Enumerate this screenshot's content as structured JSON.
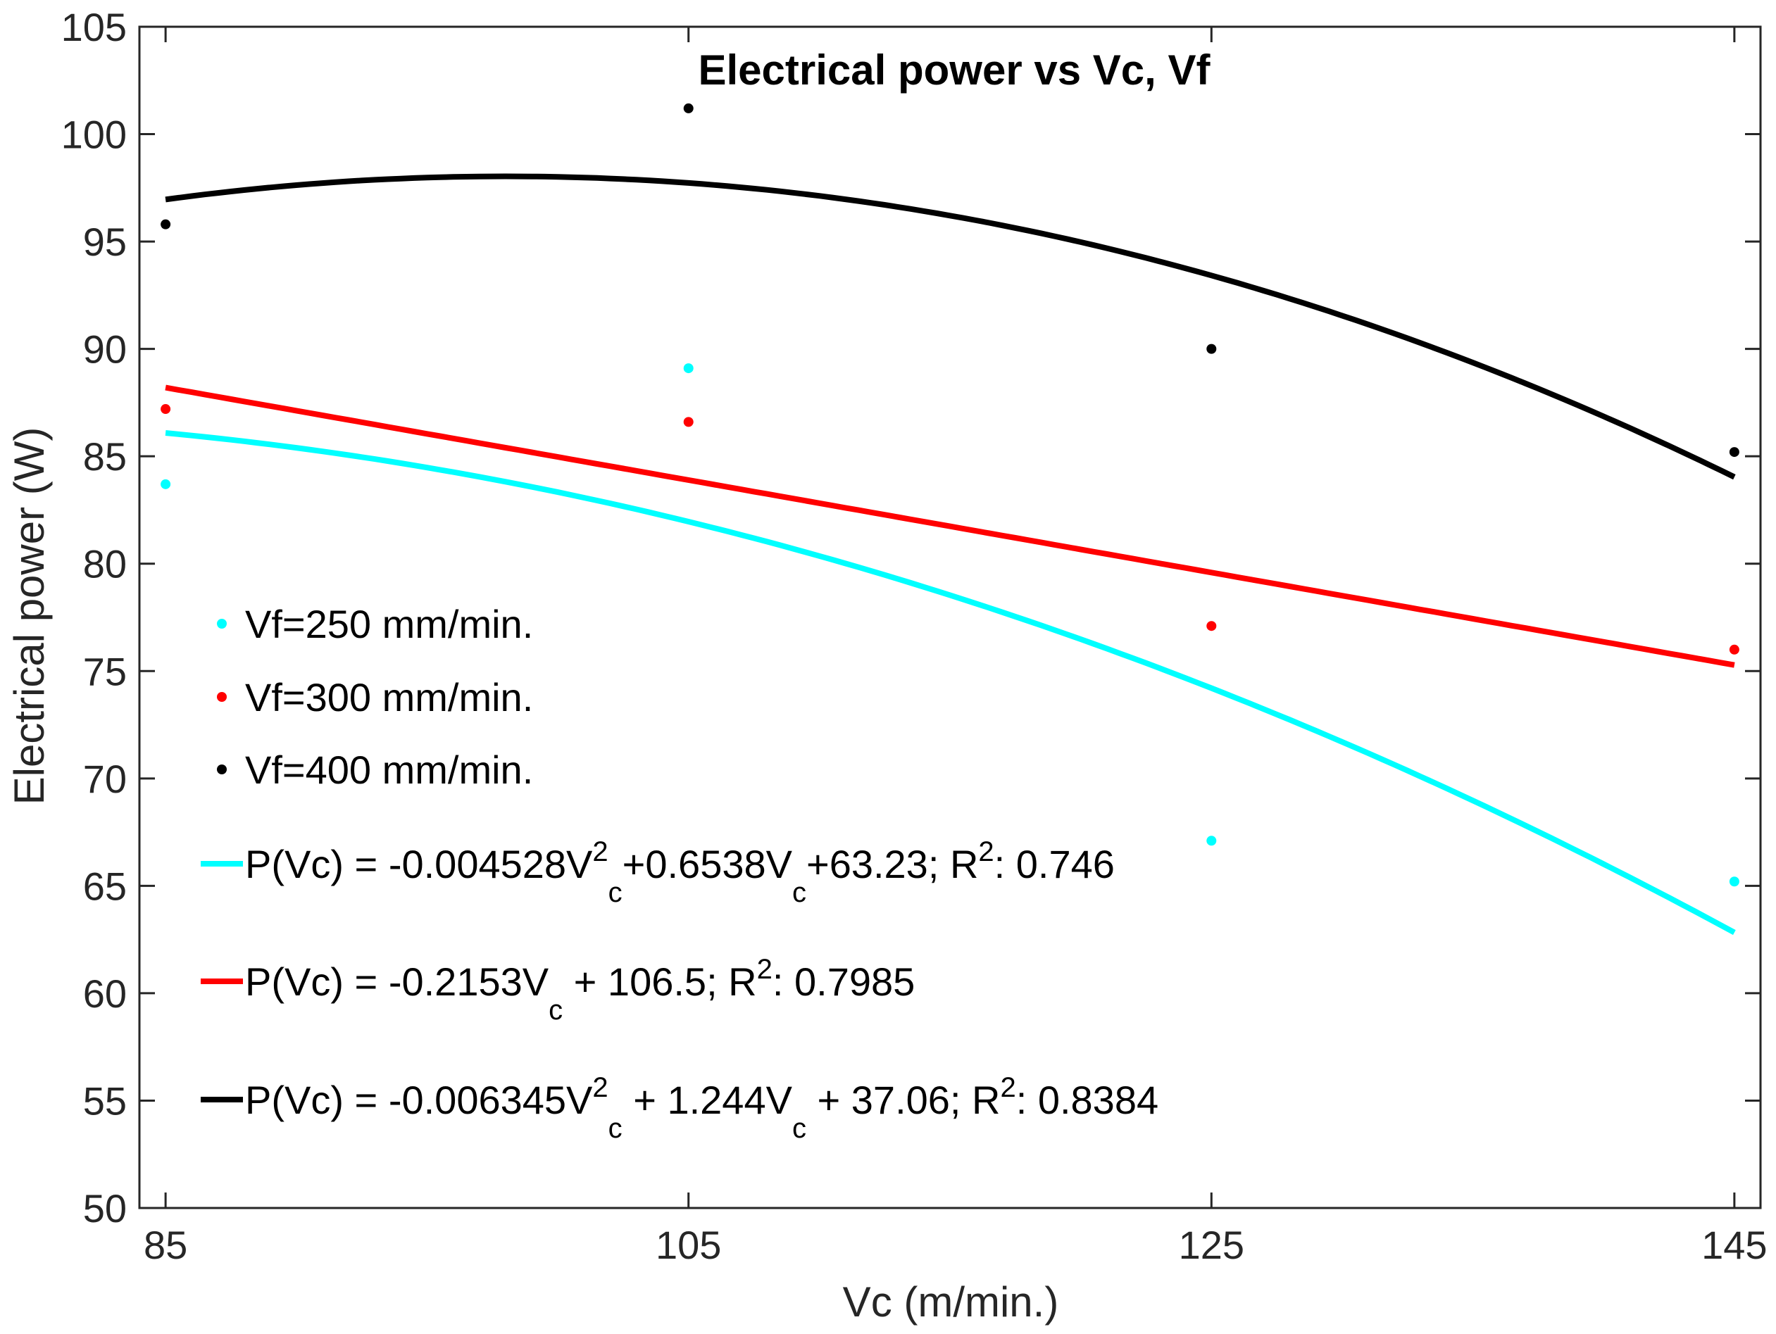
{
  "chart_data": {
    "type": "scatter",
    "title": "Electrical power vs Vc, Vf",
    "xlabel": "Vc (m/min.)",
    "ylabel": "Electrical power (W)",
    "xlim": [
      84,
      146
    ],
    "ylim": [
      50,
      105
    ],
    "xticks": [
      85,
      105,
      125,
      145
    ],
    "yticks": [
      50,
      55,
      60,
      65,
      70,
      75,
      80,
      85,
      90,
      95,
      100,
      105
    ],
    "grid": false,
    "legend_position": "left",
    "series": [
      {
        "name": "Vf=250 mm/min.",
        "color": "#00ffff",
        "x": [
          85,
          105,
          125,
          145
        ],
        "y": [
          83.7,
          89.1,
          67.1,
          65.2
        ]
      },
      {
        "name": "Vf=300 mm/min.",
        "color": "#ff0000",
        "x": [
          85,
          105,
          125,
          145
        ],
        "y": [
          87.2,
          86.6,
          77.1,
          76.0
        ]
      },
      {
        "name": "Vf=400 mm/min.",
        "color": "#000000",
        "x": [
          85,
          105,
          125,
          145
        ],
        "y": [
          95.8,
          101.2,
          90.0,
          85.2
        ]
      }
    ],
    "fits": [
      {
        "color": "#00ffff",
        "coeffs": [
          -0.004528,
          0.6538,
          63.23
        ],
        "parts": [
          {
            "t": "P(Vc) = -0.004528V"
          },
          {
            "t": "2",
            "sup": true
          },
          {
            "t": "c",
            "sub": true
          },
          {
            "t": "+0.6538V"
          },
          {
            "t": "c",
            "sub": true
          },
          {
            "t": "+63.23; R"
          },
          {
            "t": "2",
            "sup": true
          },
          {
            "t": ": 0.746"
          }
        ]
      },
      {
        "color": "#ff0000",
        "coeffs": [
          0,
          -0.2153,
          106.5
        ],
        "parts": [
          {
            "t": "P(Vc) = -0.2153V"
          },
          {
            "t": "c",
            "sub": true
          },
          {
            "t": " + 106.5; R"
          },
          {
            "t": "2",
            "sup": true
          },
          {
            "t": ": 0.7985"
          }
        ]
      },
      {
        "color": "#000000",
        "coeffs": [
          -0.006345,
          1.244,
          37.06
        ],
        "parts": [
          {
            "t": "P(Vc) = -0.006345V"
          },
          {
            "t": "2",
            "sup": true
          },
          {
            "t": "c",
            "sub": true
          },
          {
            "t": " + 1.244V"
          },
          {
            "t": "c",
            "sub": true
          },
          {
            "t": " + 37.06; R"
          },
          {
            "t": "2",
            "sup": true
          },
          {
            "t": ": 0.8384"
          }
        ]
      }
    ]
  }
}
